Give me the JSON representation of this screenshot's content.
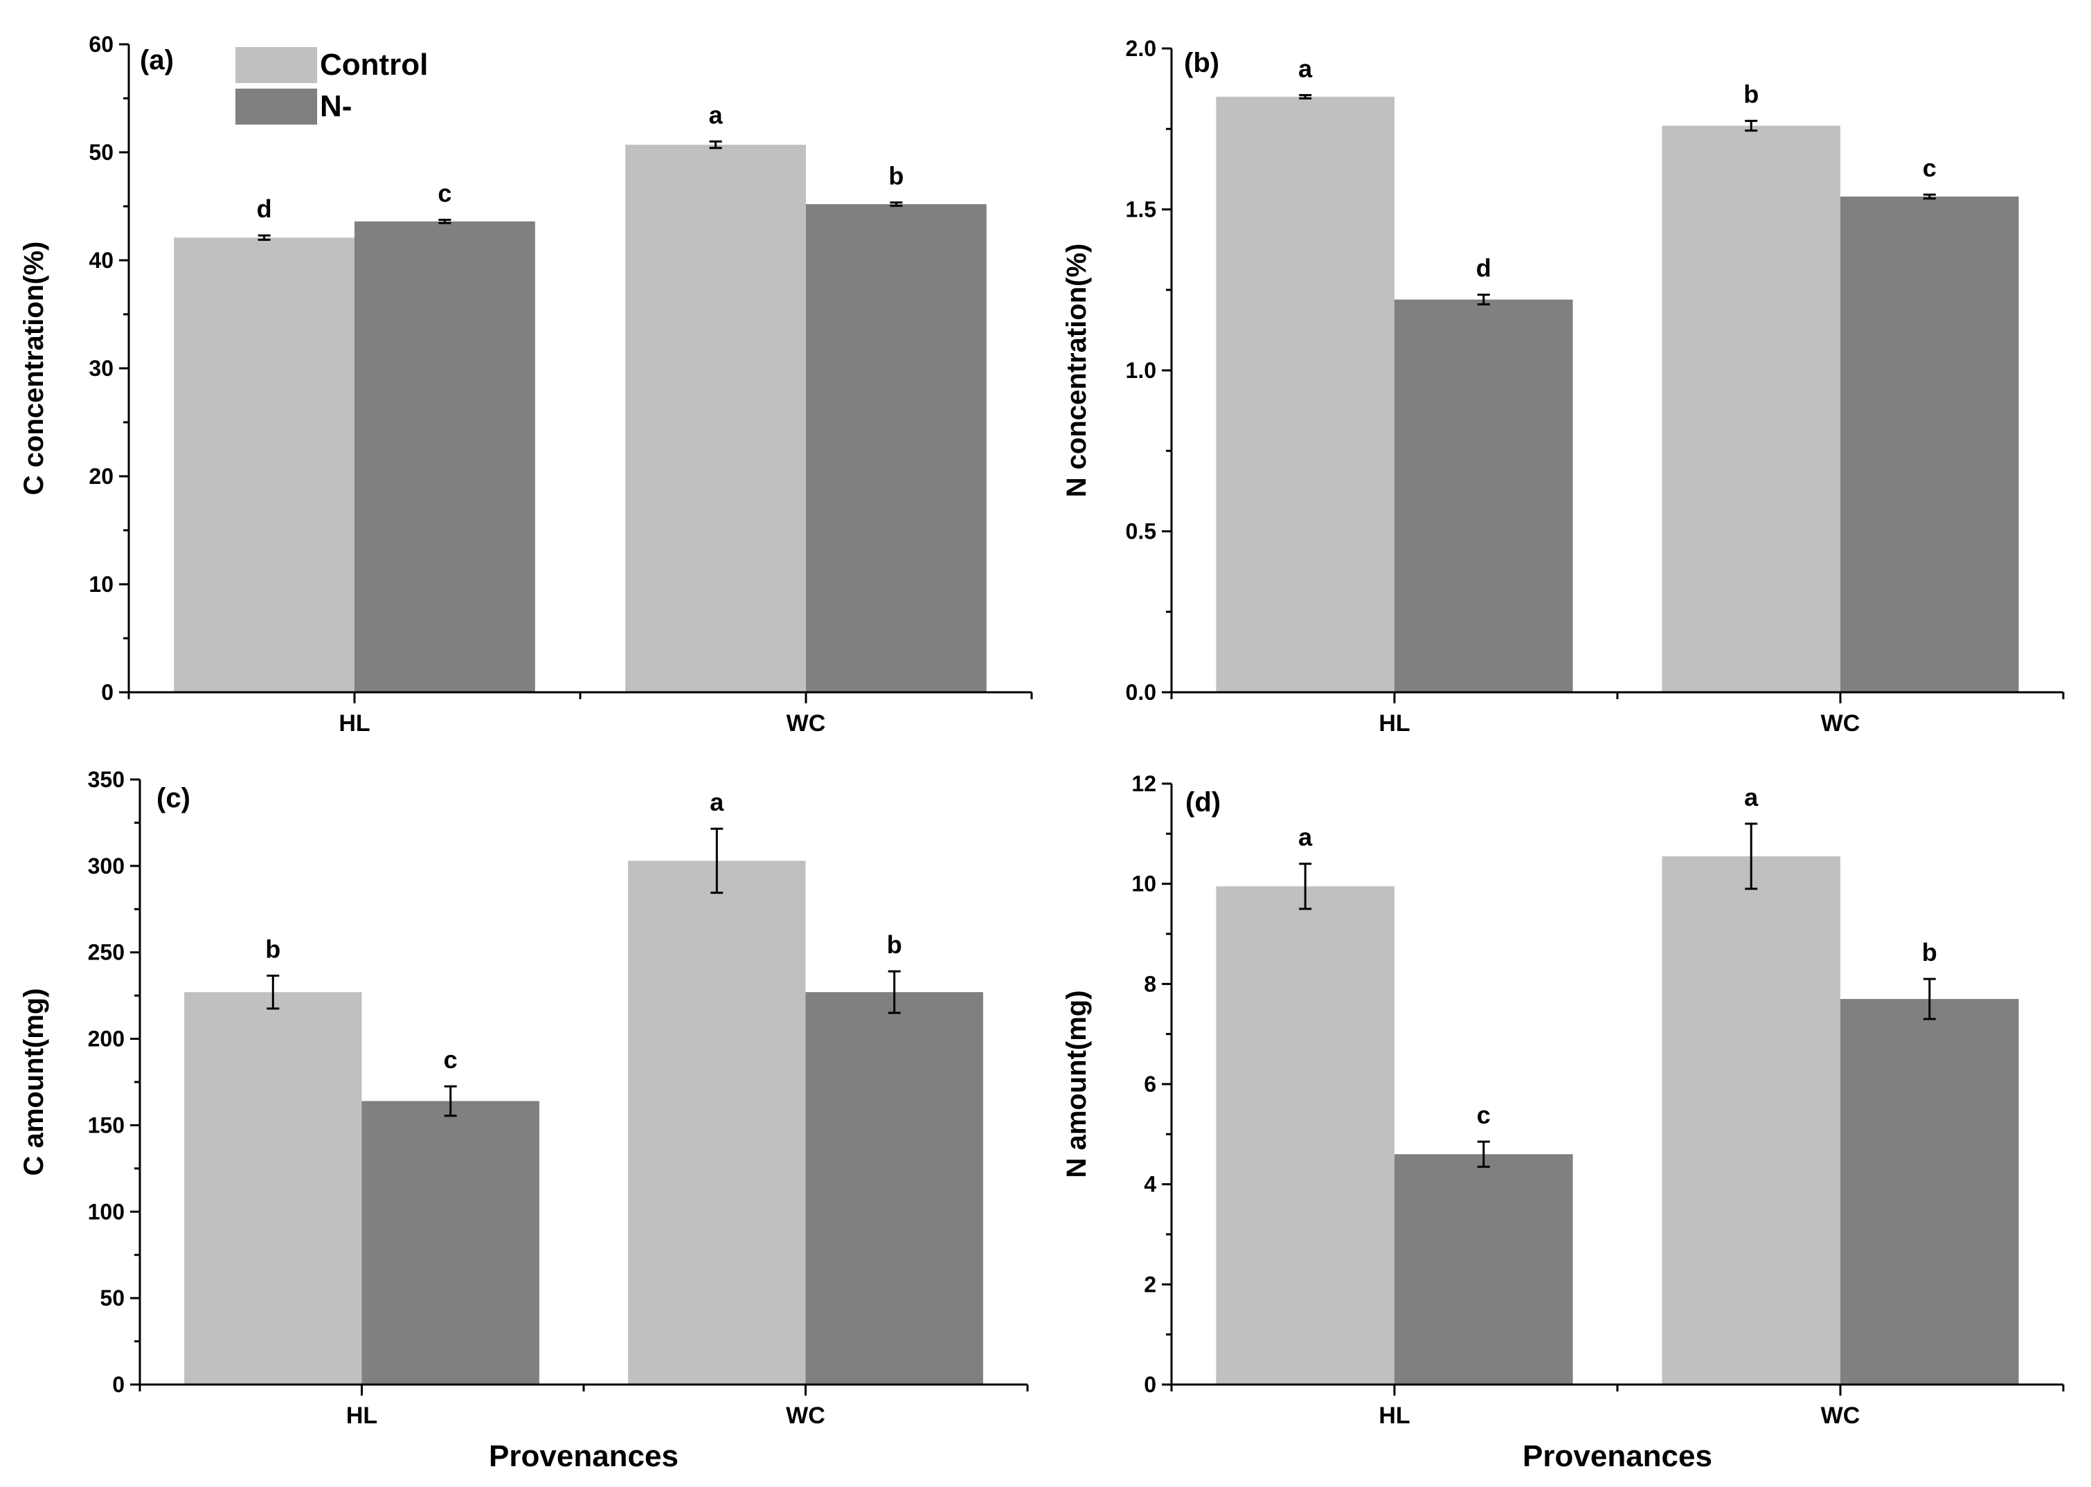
{
  "legend": [
    {
      "name": "Control",
      "color": "#c0c0c0"
    },
    {
      "name": "N-",
      "color": "#808080"
    }
  ],
  "chart_data": [
    {
      "type": "bar",
      "panel_label": "(a)",
      "categories": [
        "HL",
        "WC"
      ],
      "series": [
        {
          "name": "Control",
          "values": [
            42.1,
            50.7
          ],
          "errors": [
            0.2,
            0.3
          ],
          "letters": [
            "d",
            "a"
          ]
        },
        {
          "name": "N-",
          "values": [
            43.6,
            45.2
          ],
          "errors": [
            0.15,
            0.15
          ],
          "letters": [
            "c",
            "b"
          ]
        }
      ],
      "ylabel": "C concentration(%)",
      "xlabel": "",
      "ylim": [
        0,
        60
      ],
      "yticks": [
        0,
        10,
        20,
        30,
        40,
        50,
        60
      ],
      "ytick_labels": [
        "0",
        "10",
        "20",
        "30",
        "40",
        "50",
        "60"
      ],
      "minor_step": 5,
      "has_legend": true
    },
    {
      "type": "bar",
      "panel_label": "(b)",
      "categories": [
        "HL",
        "WC"
      ],
      "series": [
        {
          "name": "Control",
          "values": [
            1.85,
            1.76
          ],
          "errors": [
            0.005,
            0.015
          ],
          "letters": [
            "a",
            "b"
          ]
        },
        {
          "name": "N-",
          "values": [
            1.22,
            1.54
          ],
          "errors": [
            0.015,
            0.006
          ],
          "letters": [
            "d",
            "c"
          ]
        }
      ],
      "ylabel": "N concentration(%)",
      "xlabel": "",
      "ylim": [
        0,
        2.0
      ],
      "yticks": [
        0,
        0.5,
        1.0,
        1.5,
        2.0
      ],
      "ytick_labels": [
        "0.0",
        "0.5",
        "1.0",
        "1.5",
        "2.0"
      ],
      "minor_step": 0.25,
      "has_legend": false
    },
    {
      "type": "bar",
      "panel_label": "(c)",
      "categories": [
        "HL",
        "WC"
      ],
      "series": [
        {
          "name": "Control",
          "values": [
            227,
            303
          ],
          "errors": [
            9.5,
            18.5
          ],
          "letters": [
            "b",
            "a"
          ]
        },
        {
          "name": "N-",
          "values": [
            164,
            227
          ],
          "errors": [
            8.5,
            12.0
          ],
          "letters": [
            "c",
            "b"
          ]
        }
      ],
      "ylabel": "C amount(mg)",
      "xlabel": "Provenances",
      "ylim": [
        0,
        350
      ],
      "yticks": [
        0,
        50,
        100,
        150,
        200,
        250,
        300,
        350
      ],
      "ytick_labels": [
        "0",
        "50",
        "100",
        "150",
        "200",
        "250",
        "300",
        "350"
      ],
      "minor_step": 25,
      "has_legend": false
    },
    {
      "type": "bar",
      "panel_label": "(d)",
      "categories": [
        "HL",
        "WC"
      ],
      "series": [
        {
          "name": "Control",
          "values": [
            9.95,
            10.55
          ],
          "errors": [
            0.45,
            0.65
          ],
          "letters": [
            "a",
            "a"
          ]
        },
        {
          "name": "N-",
          "values": [
            4.6,
            7.7
          ],
          "errors": [
            0.25,
            0.4
          ],
          "letters": [
            "c",
            "b"
          ]
        }
      ],
      "ylabel": "N amount(mg)",
      "xlabel": "Provenances",
      "ylim": [
        0,
        12
      ],
      "yticks": [
        0,
        2,
        4,
        6,
        8,
        10,
        12
      ],
      "ytick_labels": [
        "0",
        "2",
        "4",
        "6",
        "8",
        "10",
        "12"
      ],
      "minor_step": 1,
      "has_legend": false
    }
  ]
}
